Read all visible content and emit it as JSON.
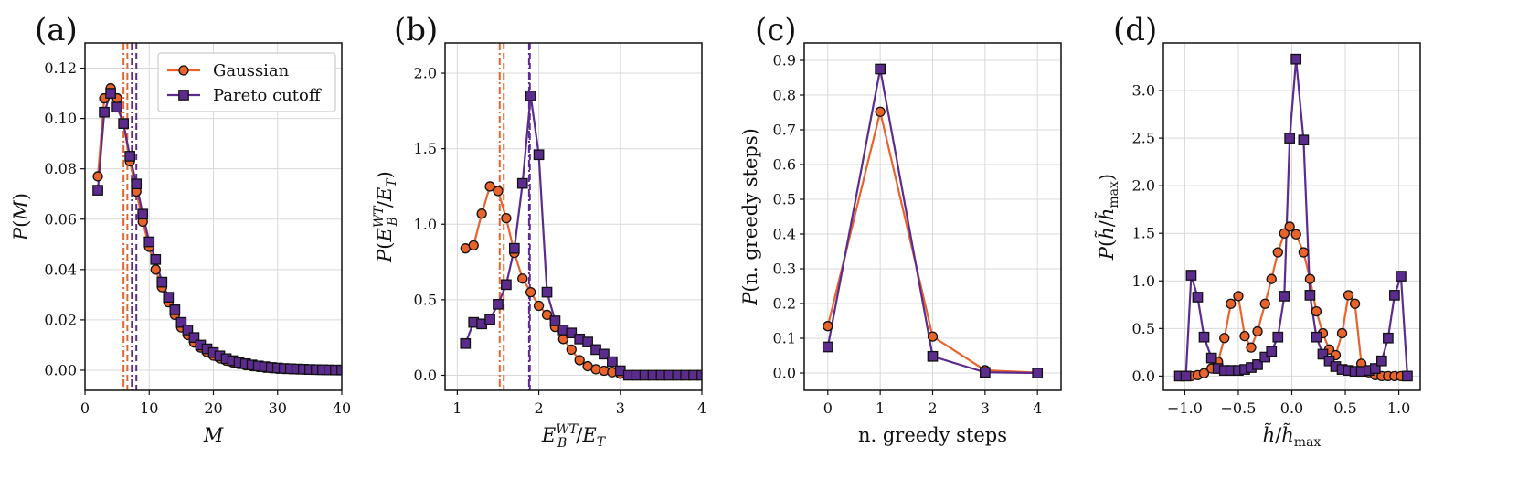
{
  "colors": {
    "gaussian": "#E8642C",
    "pareto": "#5B2C8E",
    "marker_edge": "#111111",
    "grid": "#d9d9d9"
  },
  "legend": {
    "gaussian": "Gaussian",
    "pareto": "Pareto cutoff"
  },
  "chart_data": [
    {
      "panel": "(a)",
      "type": "line",
      "xlabel": "M",
      "ylabel": "P(M)",
      "xlim": [
        0,
        40
      ],
      "ylim": [
        -0.008,
        0.13
      ],
      "xticks": [
        0,
        10,
        20,
        30,
        40
      ],
      "xticklabels": [
        "0",
        "10",
        "20",
        "30",
        "40"
      ],
      "yticks": [
        0,
        0.02,
        0.04,
        0.06,
        0.08,
        0.1,
        0.12
      ],
      "yticklabels": [
        "0.00",
        "0.02",
        "0.04",
        "0.06",
        "0.08",
        "0.10",
        "0.12"
      ],
      "grid": true,
      "legend": "top-right",
      "vlines": [
        {
          "series": "gaussian",
          "x": 6.0,
          "style": "dashdot"
        },
        {
          "series": "gaussian",
          "x": 6.6,
          "style": "dashed"
        },
        {
          "series": "pareto",
          "x": 7.3,
          "style": "dashdot"
        },
        {
          "series": "pareto",
          "x": 8.0,
          "style": "dashed"
        }
      ],
      "series": [
        {
          "name": "Gaussian",
          "x": [
            2,
            3,
            4,
            5,
            6,
            7,
            8,
            9,
            10,
            11,
            12,
            13,
            14,
            15,
            16,
            17,
            18,
            19,
            20,
            21,
            22,
            23,
            24,
            25,
            26,
            27,
            28,
            29,
            30,
            31,
            32,
            33,
            34,
            35,
            36,
            37,
            38,
            39,
            40
          ],
          "y": [
            0.077,
            0.108,
            0.112,
            0.108,
            0.098,
            0.083,
            0.071,
            0.059,
            0.049,
            0.04,
            0.033,
            0.027,
            0.022,
            0.017,
            0.014,
            0.011,
            0.009,
            0.0072,
            0.0058,
            0.0047,
            0.0038,
            0.0031,
            0.0025,
            0.002,
            0.0016,
            0.0013,
            0.001,
            0.0008,
            0.0006,
            0.0005,
            0.0004,
            0.0003,
            0.00025,
            0.0002,
            0.00015,
            0.0001,
            8e-05,
            6e-05,
            5e-05
          ]
        },
        {
          "name": "Pareto cutoff",
          "x": [
            2,
            3,
            4,
            5,
            6,
            7,
            8,
            9,
            10,
            11,
            12,
            13,
            14,
            15,
            16,
            17,
            18,
            19,
            20,
            21,
            22,
            23,
            24,
            25,
            26,
            27,
            28,
            29,
            30,
            31,
            32,
            33,
            34,
            35,
            36,
            37,
            38,
            39,
            40
          ],
          "y": [
            0.0715,
            0.1025,
            0.11,
            0.1045,
            0.098,
            0.085,
            0.074,
            0.062,
            0.051,
            0.044,
            0.035,
            0.029,
            0.024,
            0.019,
            0.016,
            0.013,
            0.01,
            0.0085,
            0.007,
            0.0057,
            0.0046,
            0.0038,
            0.0031,
            0.0026,
            0.0021,
            0.0017,
            0.0014,
            0.0011,
            0.0009,
            0.0007,
            0.0006,
            0.0005,
            0.0004,
            0.0003,
            0.00025,
            0.0002,
            0.00015,
            0.0001,
            8e-05
          ]
        }
      ]
    },
    {
      "panel": "(b)",
      "type": "line",
      "xlabel": "E_B^{WT}/E_T",
      "ylabel": "P(E_B^{WT}/E_T)",
      "xlim": [
        0.85,
        4.0
      ],
      "ylim": [
        -0.1,
        2.2
      ],
      "xticks": [
        1,
        2,
        3,
        4
      ],
      "xticklabels": [
        "1",
        "2",
        "3",
        "4"
      ],
      "yticks": [
        0,
        0.5,
        1.0,
        1.5,
        2.0
      ],
      "yticklabels": [
        "0.0",
        "0.5",
        "1.0",
        "1.5",
        "2.0"
      ],
      "grid": true,
      "vlines": [
        {
          "series": "gaussian",
          "x": 1.52,
          "style": "dashdot"
        },
        {
          "series": "gaussian",
          "x": 1.57,
          "style": "dashed"
        },
        {
          "series": "pareto",
          "x": 1.88,
          "style": "dashdot"
        },
        {
          "series": "pareto",
          "x": 1.89,
          "style": "dashed"
        }
      ],
      "series": [
        {
          "name": "Gaussian",
          "x": [
            1.1,
            1.2,
            1.3,
            1.4,
            1.5,
            1.6,
            1.7,
            1.8,
            1.9,
            2.0,
            2.1,
            2.2,
            2.3,
            2.4,
            2.5,
            2.6,
            2.7,
            2.8,
            2.9,
            3.0,
            3.1,
            3.2,
            3.3,
            3.4,
            3.5,
            3.6,
            3.7,
            3.8,
            3.9,
            4.0
          ],
          "y": [
            0.84,
            0.86,
            1.07,
            1.25,
            1.22,
            1.04,
            0.81,
            0.64,
            0.55,
            0.46,
            0.4,
            0.32,
            0.24,
            0.17,
            0.1,
            0.06,
            0.04,
            0.03,
            0.02,
            0.01,
            0,
            0,
            0,
            0,
            0,
            0,
            0,
            0,
            0,
            0
          ]
        },
        {
          "name": "Pareto cutoff",
          "x": [
            1.1,
            1.2,
            1.3,
            1.4,
            1.5,
            1.6,
            1.7,
            1.8,
            1.9,
            2.0,
            2.1,
            2.2,
            2.3,
            2.4,
            2.5,
            2.6,
            2.7,
            2.8,
            2.9,
            3.0,
            3.1,
            3.2,
            3.3,
            3.4,
            3.5,
            3.6,
            3.7,
            3.8,
            3.9,
            4.0
          ],
          "y": [
            0.21,
            0.35,
            0.34,
            0.37,
            0.47,
            0.6,
            0.84,
            1.27,
            1.85,
            1.46,
            0.55,
            0.36,
            0.3,
            0.28,
            0.24,
            0.22,
            0.17,
            0.14,
            0.09,
            0.03,
            0,
            0,
            0,
            0,
            0,
            0,
            0,
            0,
            0,
            0
          ]
        }
      ]
    },
    {
      "panel": "(c)",
      "type": "line",
      "xlabel": "n. greedy steps",
      "ylabel": "P(n. greedy steps)",
      "xlim": [
        -0.45,
        4.45
      ],
      "ylim": [
        -0.05,
        0.95
      ],
      "xticks": [
        0,
        1,
        2,
        3,
        4
      ],
      "xticklabels": [
        "0",
        "1",
        "2",
        "3",
        "4"
      ],
      "yticks": [
        0,
        0.1,
        0.2,
        0.3,
        0.4,
        0.5,
        0.6,
        0.7,
        0.8,
        0.9
      ],
      "yticklabels": [
        "0.0",
        "0.1",
        "0.2",
        "0.3",
        "0.4",
        "0.5",
        "0.6",
        "0.7",
        "0.8",
        "0.9"
      ],
      "grid": true,
      "series": [
        {
          "name": "Gaussian",
          "x": [
            0,
            1,
            2,
            3,
            4
          ],
          "y": [
            0.135,
            0.752,
            0.105,
            0.008,
            0.001
          ]
        },
        {
          "name": "Pareto cutoff",
          "x": [
            0,
            1,
            2,
            3,
            4
          ],
          "y": [
            0.075,
            0.875,
            0.048,
            0.002,
            0.0
          ]
        }
      ]
    },
    {
      "panel": "(d)",
      "type": "line",
      "xlabel": "h̃/h̃_max",
      "ylabel": "P(h̃/h̃_max)",
      "xlim": [
        -1.2,
        1.2
      ],
      "ylim": [
        -0.15,
        3.5
      ],
      "xticks": [
        -1.0,
        -0.5,
        0.0,
        0.5,
        1.0
      ],
      "xticklabels": [
        "−1.0",
        "−0.5",
        "0.0",
        "0.5",
        "1.0"
      ],
      "yticks": [
        0,
        0.5,
        1.0,
        1.5,
        2.0,
        2.5,
        3.0
      ],
      "yticklabels": [
        "0.0",
        "0.5",
        "1.0",
        "1.5",
        "2.0",
        "2.5",
        "3.0"
      ],
      "grid": true,
      "series": [
        {
          "name": "Gaussian",
          "x": [
            -1.05,
            -0.99,
            -0.94,
            -0.88,
            -0.82,
            -0.75,
            -0.69,
            -0.63,
            -0.57,
            -0.5,
            -0.44,
            -0.38,
            -0.32,
            -0.25,
            -0.19,
            -0.13,
            -0.07,
            -0.02,
            0.04,
            0.11,
            0.17,
            0.23,
            0.29,
            0.35,
            0.41,
            0.47,
            0.53,
            0.59,
            0.65,
            0.72,
            0.78,
            0.84,
            0.9,
            0.96,
            1.02,
            1.08
          ],
          "y": [
            0,
            0,
            0,
            0.01,
            0.03,
            0.08,
            0.15,
            0.4,
            0.76,
            0.84,
            0.42,
            0.3,
            0.47,
            0.76,
            1.02,
            1.3,
            1.5,
            1.57,
            1.49,
            1.3,
            1.02,
            0.68,
            0.45,
            0.28,
            0.22,
            0.45,
            0.85,
            0.76,
            0.13,
            0.04,
            0.01,
            0,
            0,
            0,
            0,
            0
          ]
        },
        {
          "name": "Pareto cutoff",
          "x": [
            -1.05,
            -0.99,
            -0.94,
            -0.88,
            -0.82,
            -0.75,
            -0.69,
            -0.63,
            -0.57,
            -0.5,
            -0.44,
            -0.38,
            -0.32,
            -0.25,
            -0.19,
            -0.13,
            -0.07,
            -0.02,
            0.04,
            0.11,
            0.17,
            0.23,
            0.29,
            0.35,
            0.41,
            0.47,
            0.53,
            0.59,
            0.65,
            0.72,
            0.78,
            0.84,
            0.9,
            0.96,
            1.02,
            1.08
          ],
          "y": [
            0,
            0,
            1.06,
            0.83,
            0.41,
            0.19,
            0.08,
            0.06,
            0.06,
            0.06,
            0.07,
            0.09,
            0.12,
            0.2,
            0.26,
            0.41,
            0.84,
            2.5,
            3.33,
            2.48,
            0.85,
            0.41,
            0.23,
            0.16,
            0.1,
            0.07,
            0.06,
            0.05,
            0.05,
            0.06,
            0.08,
            0.16,
            0.4,
            0.85,
            1.05,
            0
          ]
        }
      ]
    }
  ]
}
